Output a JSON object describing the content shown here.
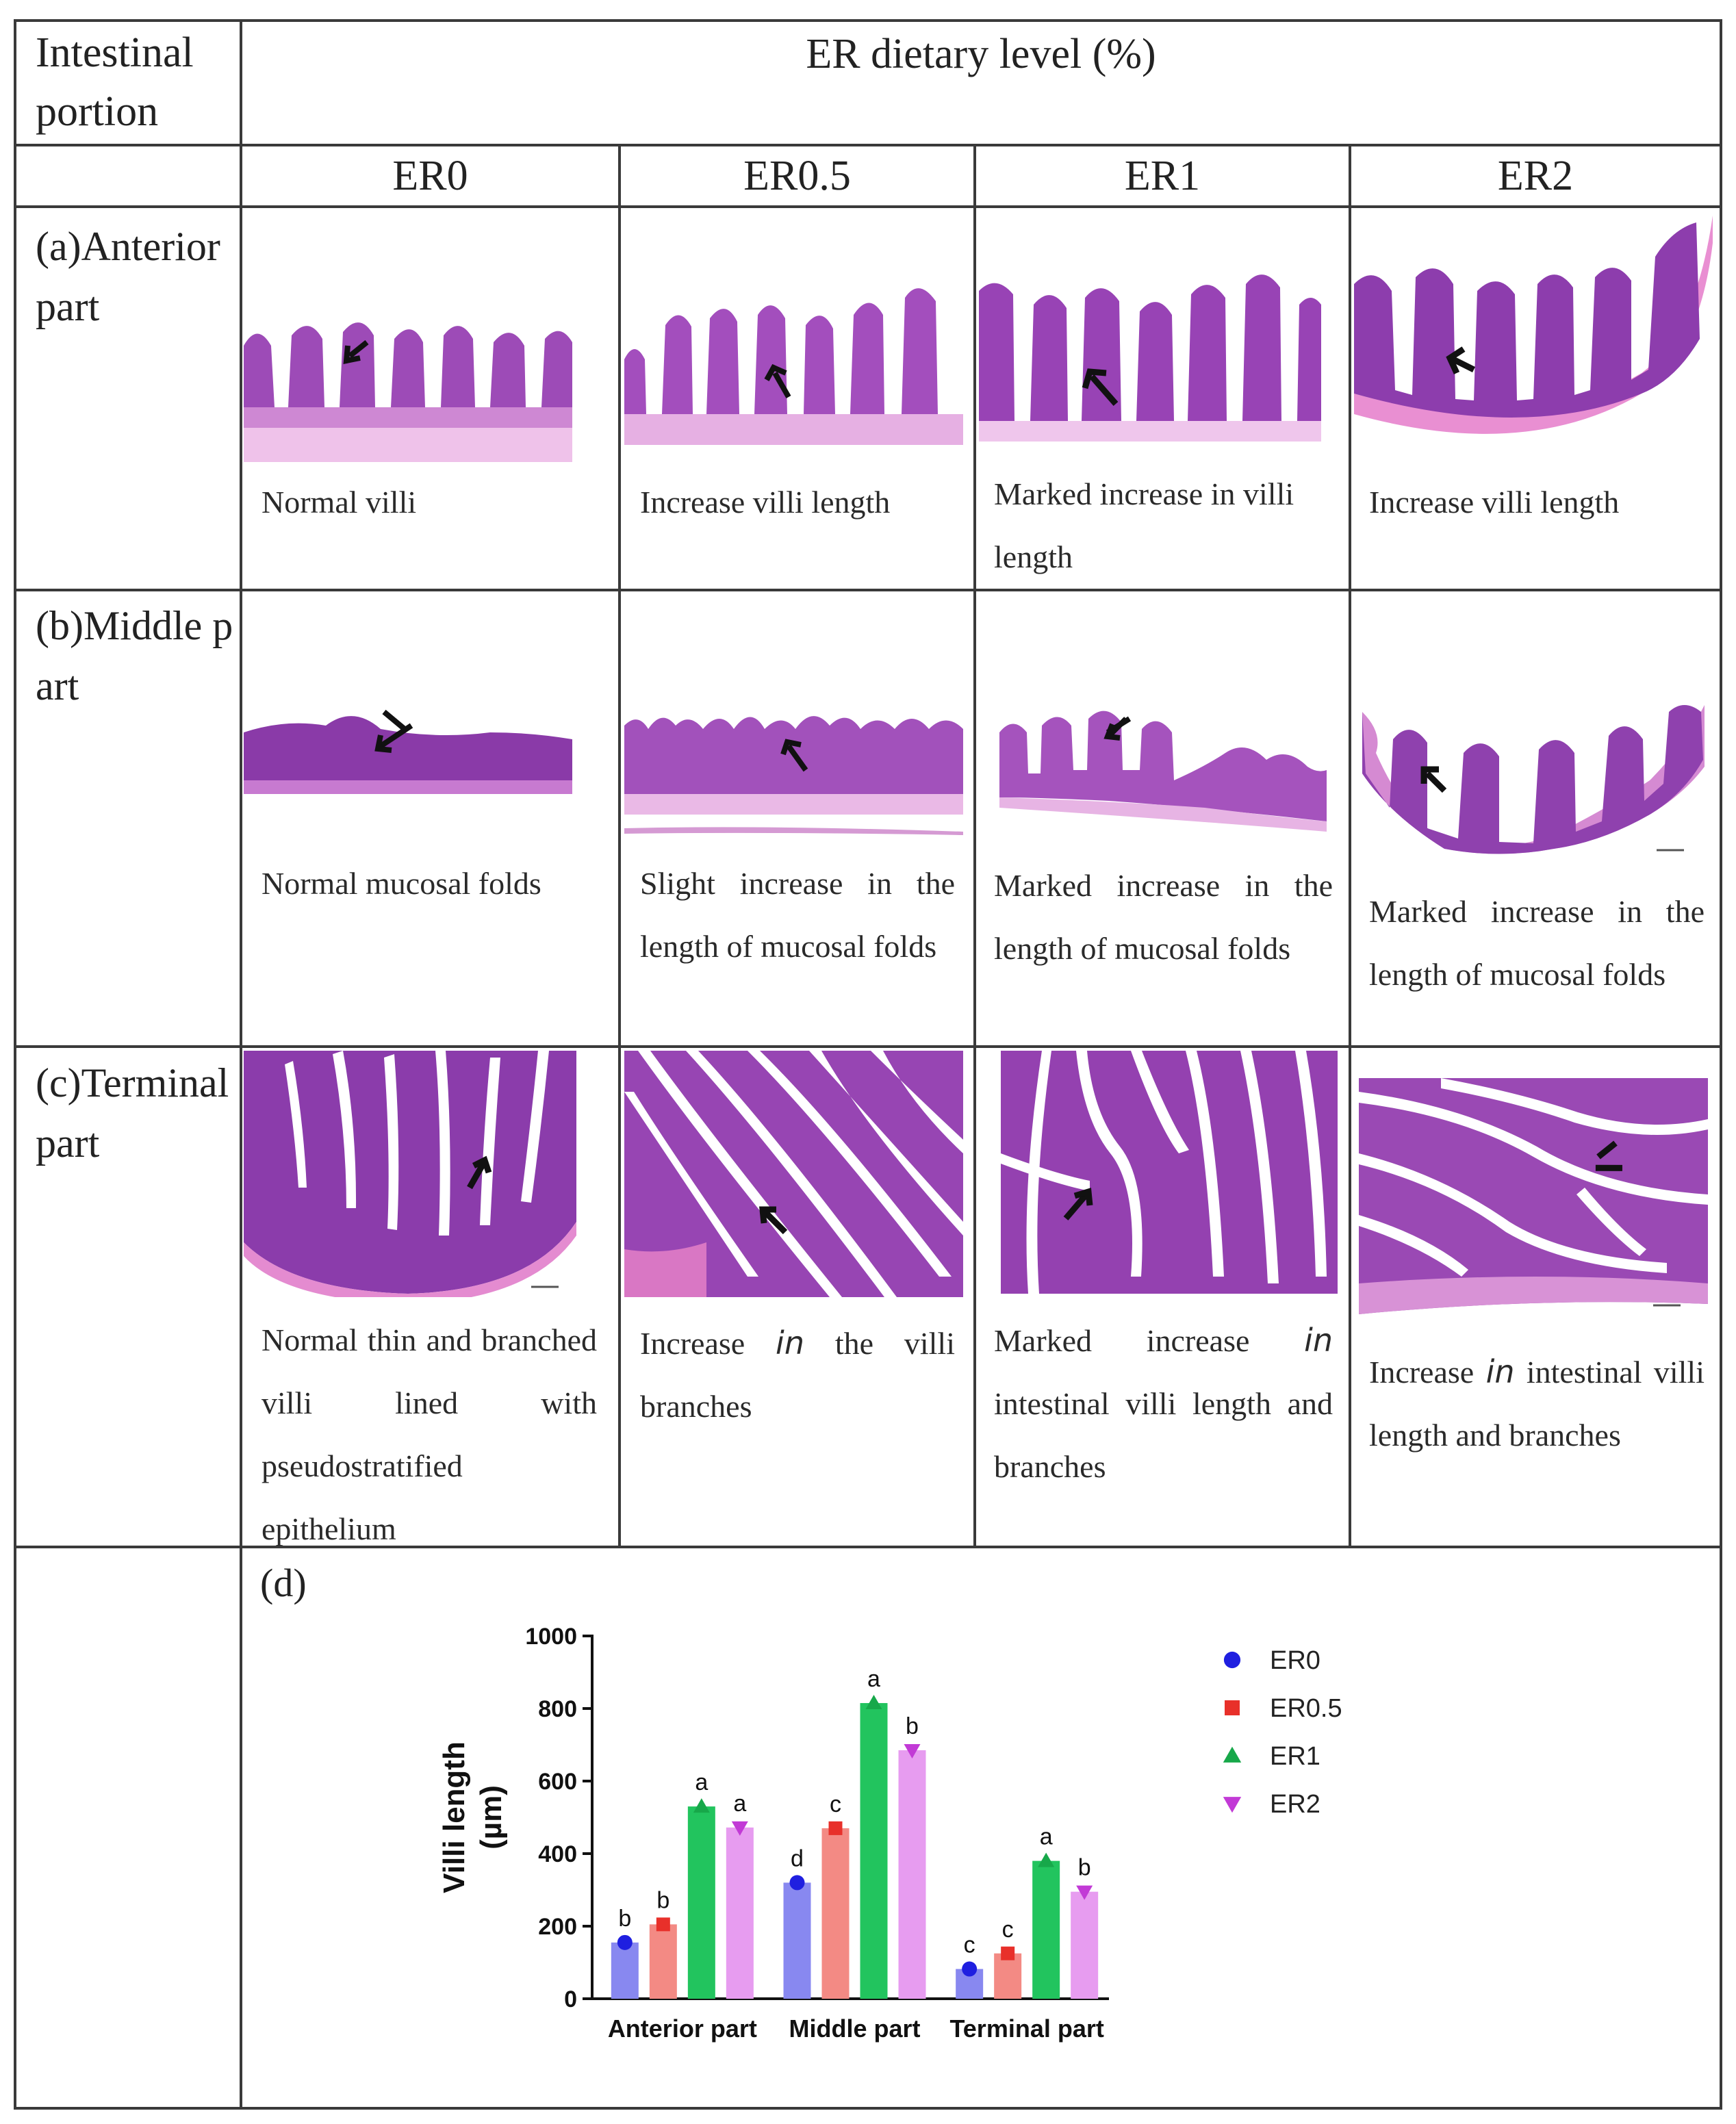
{
  "table": {
    "portion_header": "Intestinal portion",
    "level_header": "ER dietary level (%)",
    "columns": [
      "ER0",
      "ER0.5",
      "ER1",
      "ER2"
    ],
    "rows": [
      {
        "label": "(a)Anterior part",
        "captions": [
          "Normal villi",
          "Increase villi length",
          "Marked increase in villi length",
          "Increase villi length"
        ]
      },
      {
        "label": "(b)Middle part",
        "captions": [
          "Normal mucosal folds",
          "Slight increase in the length of mucosal folds",
          "Marked increase in the length of mucosal folds",
          "Marked increase in the length of mucosal folds"
        ]
      },
      {
        "label": "(c)Terminal part",
        "captions": [
          "Normal thin and branched villi lined with pseudostratified epithelium",
          "Increase in the villi branches",
          "Marked increase in intestinal villi length and branches",
          "Increase in intestinal villi length and branches"
        ]
      }
    ],
    "panel_d_label": "(d)"
  },
  "colors": {
    "tissue_dark": "#7a2a9a",
    "tissue_light": "#d48fd6",
    "tissue_bg": "#e9b4e6"
  },
  "chart_data": {
    "type": "bar",
    "categories": [
      "Anterior part",
      "Middle part",
      "Terminal part"
    ],
    "ylabel": "Villi length (µm)",
    "ylim": [
      0,
      1000
    ],
    "yticks": [
      0,
      200,
      400,
      600,
      800,
      1000
    ],
    "legend_position": "right",
    "series": [
      {
        "name": "ER0",
        "marker": "circle",
        "color": "#8888f0",
        "marker_color": "#1f1fe0",
        "values": [
          155,
          320,
          82
        ],
        "letters": [
          "b",
          "d",
          "c"
        ]
      },
      {
        "name": "ER0.5",
        "marker": "square",
        "color": "#f38a84",
        "marker_color": "#e8302a",
        "values": [
          205,
          470,
          125
        ],
        "letters": [
          "b",
          "c",
          "c"
        ]
      },
      {
        "name": "ER1",
        "marker": "triangle-up",
        "color": "#22c45e",
        "marker_color": "#17a84a",
        "values": [
          530,
          815,
          380
        ],
        "letters": [
          "a",
          "a",
          "a"
        ]
      },
      {
        "name": "ER2",
        "marker": "triangle-down",
        "color": "#e79cf0",
        "marker_color": "#c23ad6",
        "values": [
          472,
          685,
          295
        ],
        "letters": [
          "a",
          "b",
          "b"
        ]
      }
    ]
  }
}
